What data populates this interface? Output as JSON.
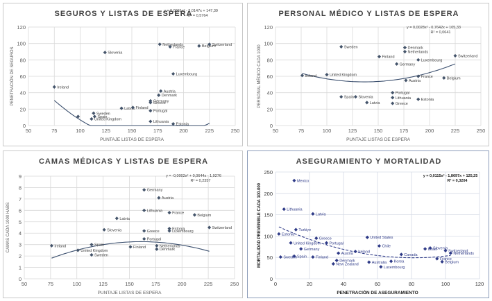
{
  "chart_data": [
    {
      "type": "scatter",
      "title": "SEGUROS Y LISTAS DE ESPERA",
      "xlabel": "PUNTAJE LISTAS DE ESPERA",
      "ylabel": "PENETRACIÓN DE SEGUROS",
      "xlim": [
        50,
        250
      ],
      "ylim": [
        0,
        120
      ],
      "xticks": [
        50,
        75,
        100,
        125,
        150,
        175,
        200,
        225,
        250
      ],
      "yticks": [
        0,
        20,
        40,
        60,
        80,
        100,
        120
      ],
      "grid": true,
      "marker_color": "#44546a",
      "line_color": "#3b4f6e",
      "trendline": {
        "a": 0.0061,
        "b": -2.0147,
        "c": 147.39
      },
      "equation": "y = 0,0061x² - 2,0147x + 147,39",
      "r2": "R² = 0,5764",
      "points": [
        {
          "label": "Ireland",
          "x": 75,
          "y": 47
        },
        {
          "label": "Slovenia",
          "x": 124,
          "y": 89
        },
        {
          "label": "Spain",
          "x": 114,
          "y": 11
        },
        {
          "label": "Sweden",
          "x": 113,
          "y": 15
        },
        {
          "label": "United Kingdom",
          "x": 111,
          "y": 8
        },
        {
          "label": "",
          "x": 98,
          "y": 11
        },
        {
          "label": "Latvia",
          "x": 140,
          "y": 21
        },
        {
          "label": "Finland",
          "x": 151,
          "y": 22
        },
        {
          "label": "Netherlands",
          "x": 177,
          "y": 99
        },
        {
          "label": "France",
          "x": 187,
          "y": 96
        },
        {
          "label": "Belgium",
          "x": 215,
          "y": 97
        },
        {
          "label": "Switzerland",
          "x": 225,
          "y": 99
        },
        {
          "label": "Luxembourg",
          "x": 190,
          "y": 63
        },
        {
          "label": "Austria",
          "x": 178,
          "y": 42
        },
        {
          "label": "Denmark",
          "x": 176,
          "y": 37
        },
        {
          "label": "Greece",
          "x": 168,
          "y": 28
        },
        {
          "label": "Portugal",
          "x": 168,
          "y": 18
        },
        {
          "label": "Germany",
          "x": 168,
          "y": 30
        },
        {
          "label": "Lithuania",
          "x": 168,
          "y": 5
        },
        {
          "label": "Estonia",
          "x": 190,
          "y": 2
        }
      ]
    },
    {
      "type": "scatter",
      "title": "PERSONAL MÉDICO Y LISTAS DE ESPERA",
      "xlabel": "PUNTAJE LISTAS DE ESPERA",
      "ylabel": "PERSONAL MÉDICO CADA 1000",
      "xlim": [
        50,
        250
      ],
      "ylim": [
        0,
        120
      ],
      "xticks": [
        50,
        75,
        100,
        125,
        150,
        175,
        200,
        225,
        250
      ],
      "yticks": [
        0,
        20,
        40,
        60,
        80,
        100,
        120
      ],
      "grid": true,
      "marker_color": "#44546a",
      "line_color": "#3b4f6e",
      "trendline": {
        "a": 0.0028,
        "b": -0.7642,
        "c": 105.33
      },
      "equation": "y = 0,0028x² - 0,7642x + 105,33",
      "r2": "R² = 0,0641",
      "points": [
        {
          "label": "Sweden",
          "x": 114,
          "y": 96
        },
        {
          "label": "Ireland",
          "x": 76,
          "y": 61
        },
        {
          "label": "United Kingdom",
          "x": 100,
          "y": 62
        },
        {
          "label": "Finland",
          "x": 151,
          "y": 84
        },
        {
          "label": "Denmark",
          "x": 176,
          "y": 95
        },
        {
          "label": "Netherlands",
          "x": 176,
          "y": 90
        },
        {
          "label": "Luxembourg",
          "x": 189,
          "y": 80
        },
        {
          "label": "Germany",
          "x": 168,
          "y": 75
        },
        {
          "label": "Switzerland",
          "x": 225,
          "y": 85
        },
        {
          "label": "France",
          "x": 189,
          "y": 60
        },
        {
          "label": "Belgium",
          "x": 214,
          "y": 58
        },
        {
          "label": "Austria",
          "x": 177,
          "y": 55
        },
        {
          "label": "Portugal",
          "x": 164,
          "y": 40
        },
        {
          "label": "Lithuania",
          "x": 164,
          "y": 34
        },
        {
          "label": "Greece",
          "x": 164,
          "y": 27
        },
        {
          "label": "Spain",
          "x": 114,
          "y": 35
        },
        {
          "label": "Slovenia",
          "x": 128,
          "y": 35
        },
        {
          "label": "Latvia",
          "x": 139,
          "y": 28
        },
        {
          "label": "Estonia",
          "x": 189,
          "y": 32
        }
      ]
    },
    {
      "type": "scatter",
      "title": "CAMAS MÉDICAS Y LISTAS DE ESPERA",
      "xlabel": "PUNTAJE LISTAS DE ESPERA",
      "ylabel": "CAMAS CADA 1000 HABS",
      "xlim": [
        50,
        250
      ],
      "ylim": [
        0,
        9
      ],
      "xticks": [
        50,
        75,
        100,
        125,
        150,
        175,
        200,
        225,
        250
      ],
      "yticks": [
        0,
        1,
        2,
        3,
        4,
        5,
        6,
        7,
        8,
        9
      ],
      "grid": true,
      "marker_color": "#44546a",
      "line_color": "#3b4f6e",
      "trendline": {
        "a": -0.0002,
        "b": 0.0644,
        "c": -1.9276
      },
      "equation": "y = -0,0002x² + 0,0644x - 1,9276",
      "r2": "R² = 0,2357",
      "points": [
        {
          "label": "Germany",
          "x": 164,
          "y": 7.8
        },
        {
          "label": "Austria",
          "x": 178,
          "y": 7.1
        },
        {
          "label": "Lithuania",
          "x": 164,
          "y": 6.0
        },
        {
          "label": "France",
          "x": 188,
          "y": 5.8
        },
        {
          "label": "Belgium",
          "x": 212,
          "y": 5.6
        },
        {
          "label": "Latvia",
          "x": 138,
          "y": 5.3
        },
        {
          "label": "Slovenia",
          "x": 126,
          "y": 4.3
        },
        {
          "label": "Greece",
          "x": 164,
          "y": 4.2
        },
        {
          "label": "Estonia",
          "x": 188,
          "y": 4.4
        },
        {
          "label": "Luxembourg",
          "x": 188,
          "y": 4.2
        },
        {
          "label": "Switzerland",
          "x": 226,
          "y": 4.5
        },
        {
          "label": "Portugal",
          "x": 164,
          "y": 3.5
        },
        {
          "label": "Ireland",
          "x": 76,
          "y": 2.9
        },
        {
          "label": "Spain",
          "x": 114,
          "y": 3.0
        },
        {
          "label": "United Kingdom",
          "x": 101,
          "y": 2.5
        },
        {
          "label": "Finland",
          "x": 151,
          "y": 2.8
        },
        {
          "label": "Netherlands",
          "x": 176,
          "y": 2.9
        },
        {
          "label": "Denmark",
          "x": 176,
          "y": 2.6
        },
        {
          "label": "Sweden",
          "x": 114,
          "y": 2.1
        }
      ]
    },
    {
      "type": "scatter",
      "title": "ASEGURAMIENTO Y MORTALIDAD",
      "xlabel": "PENETRACIÓN DE ASEGURAMIENTO",
      "ylabel": "MORTALIDAD PREVENIBLE CADA 100.000",
      "xlim": [
        0,
        120
      ],
      "ylim": [
        0,
        250
      ],
      "xticks": [
        0,
        20,
        40,
        60,
        80,
        100,
        120
      ],
      "yticks": [
        0,
        50,
        100,
        150,
        200,
        250
      ],
      "grid": true,
      "marker_color": "#2e3a87",
      "line_color": "#2e3a87",
      "trendline": {
        "a": 0.0115,
        "b": -1.8697,
        "c": 125.25
      },
      "equation": "y = 0,0115x² - 1,8697x + 125,25",
      "r2": "R² = 0,3204",
      "points": [
        {
          "label": "Mexico",
          "x": 11,
          "y": 230
        },
        {
          "label": "Lithuania",
          "x": 5,
          "y": 163
        },
        {
          "label": "Latvia",
          "x": 22,
          "y": 152
        },
        {
          "label": "Turkiye",
          "x": 12,
          "y": 115
        },
        {
          "label": "Estonia",
          "x": 2,
          "y": 105
        },
        {
          "label": "Greece",
          "x": 24,
          "y": 95
        },
        {
          "label": "United States",
          "x": 54,
          "y": 97
        },
        {
          "label": "United Kingdom",
          "x": 9,
          "y": 84
        },
        {
          "label": "Portugal",
          "x": 30,
          "y": 84
        },
        {
          "label": "Chile",
          "x": 61,
          "y": 77
        },
        {
          "label": "Germany",
          "x": 15,
          "y": 70
        },
        {
          "label": "Ireland",
          "x": 47,
          "y": 64
        },
        {
          "label": "Austria",
          "x": 37,
          "y": 60
        },
        {
          "label": "Israel",
          "x": 88,
          "y": 70
        },
        {
          "label": "Slovenia",
          "x": 91,
          "y": 72
        },
        {
          "label": "Switzerland",
          "x": 100,
          "y": 66
        },
        {
          "label": "Netherlands",
          "x": 103,
          "y": 60
        },
        {
          "label": "Canada",
          "x": 74,
          "y": 57
        },
        {
          "label": "Spain",
          "x": 11,
          "y": 53
        },
        {
          "label": "Finland",
          "x": 22,
          "y": 51
        },
        {
          "label": "Denmark",
          "x": 36,
          "y": 43
        },
        {
          "label": "New Zealand",
          "x": 34,
          "y": 35
        },
        {
          "label": "Australia",
          "x": 55,
          "y": 39
        },
        {
          "label": "Korea",
          "x": 68,
          "y": 41
        },
        {
          "label": "Luxembourg",
          "x": 62,
          "y": 28
        },
        {
          "label": "France",
          "x": 95,
          "y": 47
        },
        {
          "label": "Belgium",
          "x": 98,
          "y": 40
        },
        {
          "label": "Sweden",
          "x": 3,
          "y": 51
        }
      ]
    }
  ]
}
